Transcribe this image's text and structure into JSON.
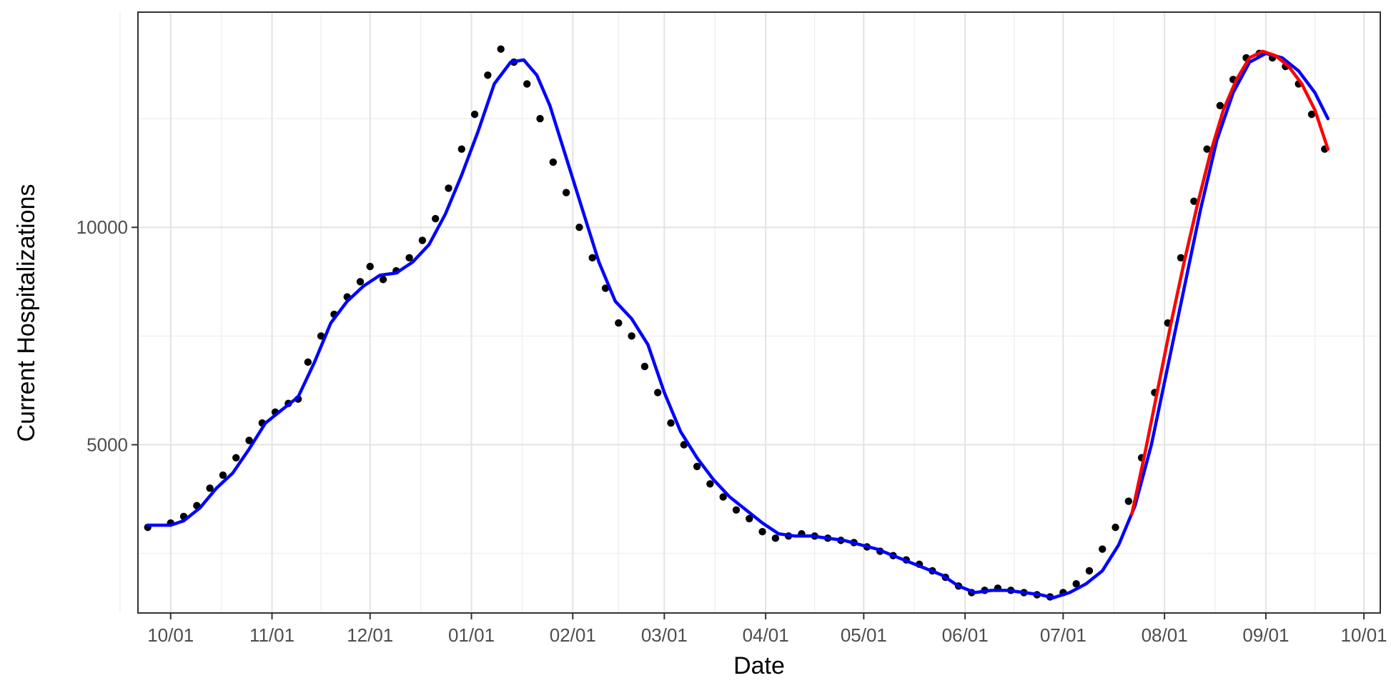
{
  "chart_data": {
    "type": "scatter",
    "title": "",
    "xlabel": "Date",
    "ylabel": "Current Hospitalizations",
    "x_type": "date",
    "xlim": [
      "2020-09-21",
      "2021-10-06"
    ],
    "ylim": [
      1130,
      14950
    ],
    "grid": true,
    "legend": "none",
    "x_ticks": [
      {
        "date": "2020-10-01",
        "label": "10/01"
      },
      {
        "date": "2020-11-01",
        "label": "11/01"
      },
      {
        "date": "2020-12-01",
        "label": "12/01"
      },
      {
        "date": "2021-01-01",
        "label": "01/01"
      },
      {
        "date": "2021-02-01",
        "label": "02/01"
      },
      {
        "date": "2021-03-01",
        "label": "03/01"
      },
      {
        "date": "2021-04-01",
        "label": "04/01"
      },
      {
        "date": "2021-05-01",
        "label": "05/01"
      },
      {
        "date": "2021-06-01",
        "label": "06/01"
      },
      {
        "date": "2021-07-01",
        "label": "07/01"
      },
      {
        "date": "2021-08-01",
        "label": "08/01"
      },
      {
        "date": "2021-09-01",
        "label": "09/01"
      },
      {
        "date": "2021-10-01",
        "label": "10/01"
      }
    ],
    "y_ticks": [
      {
        "value": 5000,
        "label": "5000"
      },
      {
        "value": 10000,
        "label": "10000"
      }
    ],
    "series": [
      {
        "kind": "points",
        "color": "#000000",
        "points": [
          [
            "2020-09-24",
            3100
          ],
          [
            "2020-10-01",
            3200
          ],
          [
            "2020-10-05",
            3350
          ],
          [
            "2020-10-09",
            3600
          ],
          [
            "2020-10-13",
            4000
          ],
          [
            "2020-10-17",
            4300
          ],
          [
            "2020-10-21",
            4700
          ],
          [
            "2020-10-25",
            5100
          ],
          [
            "2020-10-29",
            5500
          ],
          [
            "2020-11-02",
            5750
          ],
          [
            "2020-11-06",
            5950
          ],
          [
            "2020-11-09",
            6050
          ],
          [
            "2020-11-12",
            6900
          ],
          [
            "2020-11-16",
            7500
          ],
          [
            "2020-11-20",
            8000
          ],
          [
            "2020-11-24",
            8400
          ],
          [
            "2020-11-28",
            8750
          ],
          [
            "2020-12-01",
            9100
          ],
          [
            "2020-12-05",
            8800
          ],
          [
            "2020-12-09",
            9000
          ],
          [
            "2020-12-13",
            9300
          ],
          [
            "2020-12-17",
            9700
          ],
          [
            "2020-12-21",
            10200
          ],
          [
            "2020-12-25",
            10900
          ],
          [
            "2020-12-29",
            11800
          ],
          [
            "2021-01-02",
            12600
          ],
          [
            "2021-01-06",
            13500
          ],
          [
            "2021-01-10",
            14100
          ],
          [
            "2021-01-14",
            13800
          ],
          [
            "2021-01-18",
            13300
          ],
          [
            "2021-01-22",
            12500
          ],
          [
            "2021-01-26",
            11500
          ],
          [
            "2021-01-30",
            10800
          ],
          [
            "2021-02-03",
            10000
          ],
          [
            "2021-02-07",
            9300
          ],
          [
            "2021-02-11",
            8600
          ],
          [
            "2021-02-15",
            7800
          ],
          [
            "2021-02-19",
            7500
          ],
          [
            "2021-02-23",
            6800
          ],
          [
            "2021-02-27",
            6200
          ],
          [
            "2021-03-03",
            5500
          ],
          [
            "2021-03-07",
            5000
          ],
          [
            "2021-03-11",
            4500
          ],
          [
            "2021-03-15",
            4100
          ],
          [
            "2021-03-19",
            3800
          ],
          [
            "2021-03-23",
            3500
          ],
          [
            "2021-03-27",
            3300
          ],
          [
            "2021-03-31",
            3000
          ],
          [
            "2021-04-04",
            2850
          ],
          [
            "2021-04-08",
            2900
          ],
          [
            "2021-04-12",
            2950
          ],
          [
            "2021-04-16",
            2900
          ],
          [
            "2021-04-20",
            2850
          ],
          [
            "2021-04-24",
            2800
          ],
          [
            "2021-04-28",
            2750
          ],
          [
            "2021-05-02",
            2650
          ],
          [
            "2021-05-06",
            2550
          ],
          [
            "2021-05-10",
            2450
          ],
          [
            "2021-05-14",
            2350
          ],
          [
            "2021-05-18",
            2250
          ],
          [
            "2021-05-22",
            2100
          ],
          [
            "2021-05-26",
            1950
          ],
          [
            "2021-05-30",
            1750
          ],
          [
            "2021-06-03",
            1600
          ],
          [
            "2021-06-07",
            1650
          ],
          [
            "2021-06-11",
            1700
          ],
          [
            "2021-06-15",
            1650
          ],
          [
            "2021-06-19",
            1600
          ],
          [
            "2021-06-23",
            1550
          ],
          [
            "2021-06-27",
            1500
          ],
          [
            "2021-07-01",
            1600
          ],
          [
            "2021-07-05",
            1800
          ],
          [
            "2021-07-09",
            2100
          ],
          [
            "2021-07-13",
            2600
          ],
          [
            "2021-07-17",
            3100
          ],
          [
            "2021-07-21",
            3700
          ],
          [
            "2021-07-25",
            4700
          ],
          [
            "2021-07-29",
            6200
          ],
          [
            "2021-08-02",
            7800
          ],
          [
            "2021-08-06",
            9300
          ],
          [
            "2021-08-10",
            10600
          ],
          [
            "2021-08-14",
            11800
          ],
          [
            "2021-08-18",
            12800
          ],
          [
            "2021-08-22",
            13400
          ],
          [
            "2021-08-26",
            13900
          ],
          [
            "2021-08-30",
            14000
          ],
          [
            "2021-09-03",
            13900
          ],
          [
            "2021-09-07",
            13700
          ],
          [
            "2021-09-11",
            13300
          ],
          [
            "2021-09-15",
            12600
          ],
          [
            "2021-09-19",
            11800
          ]
        ]
      },
      {
        "kind": "line",
        "color": "#0000ff",
        "points": [
          [
            "2020-09-24",
            3150
          ],
          [
            "2020-10-01",
            3150
          ],
          [
            "2020-10-05",
            3250
          ],
          [
            "2020-10-10",
            3550
          ],
          [
            "2020-10-15",
            4000
          ],
          [
            "2020-10-20",
            4350
          ],
          [
            "2020-10-25",
            4900
          ],
          [
            "2020-10-30",
            5500
          ],
          [
            "2020-11-04",
            5800
          ],
          [
            "2020-11-09",
            6100
          ],
          [
            "2020-11-14",
            6900
          ],
          [
            "2020-11-19",
            7800
          ],
          [
            "2020-11-24",
            8300
          ],
          [
            "2020-11-29",
            8650
          ],
          [
            "2020-12-04",
            8900
          ],
          [
            "2020-12-09",
            8950
          ],
          [
            "2020-12-14",
            9200
          ],
          [
            "2020-12-19",
            9600
          ],
          [
            "2020-12-24",
            10300
          ],
          [
            "2020-12-29",
            11200
          ],
          [
            "2021-01-03",
            12200
          ],
          [
            "2021-01-08",
            13300
          ],
          [
            "2021-01-13",
            13800
          ],
          [
            "2021-01-17",
            13850
          ],
          [
            "2021-01-21",
            13500
          ],
          [
            "2021-01-25",
            12800
          ],
          [
            "2021-01-30",
            11600
          ],
          [
            "2021-02-04",
            10400
          ],
          [
            "2021-02-09",
            9200
          ],
          [
            "2021-02-14",
            8300
          ],
          [
            "2021-02-19",
            7900
          ],
          [
            "2021-02-24",
            7300
          ],
          [
            "2021-03-01",
            6200
          ],
          [
            "2021-03-06",
            5300
          ],
          [
            "2021-03-11",
            4700
          ],
          [
            "2021-03-16",
            4200
          ],
          [
            "2021-03-21",
            3800
          ],
          [
            "2021-03-26",
            3500
          ],
          [
            "2021-03-31",
            3200
          ],
          [
            "2021-04-05",
            2950
          ],
          [
            "2021-04-10",
            2900
          ],
          [
            "2021-04-15",
            2900
          ],
          [
            "2021-04-20",
            2850
          ],
          [
            "2021-04-25",
            2800
          ],
          [
            "2021-04-30",
            2700
          ],
          [
            "2021-05-05",
            2600
          ],
          [
            "2021-05-10",
            2450
          ],
          [
            "2021-05-15",
            2300
          ],
          [
            "2021-05-20",
            2150
          ],
          [
            "2021-05-25",
            2000
          ],
          [
            "2021-05-30",
            1750
          ],
          [
            "2021-06-04",
            1600
          ],
          [
            "2021-06-09",
            1650
          ],
          [
            "2021-06-14",
            1650
          ],
          [
            "2021-06-19",
            1600
          ],
          [
            "2021-06-24",
            1550
          ],
          [
            "2021-06-28",
            1480
          ],
          [
            "2021-07-03",
            1600
          ],
          [
            "2021-07-08",
            1800
          ],
          [
            "2021-07-13",
            2100
          ],
          [
            "2021-07-18",
            2700
          ],
          [
            "2021-07-23",
            3600
          ],
          [
            "2021-07-28",
            5000
          ],
          [
            "2021-08-02",
            6800
          ],
          [
            "2021-08-07",
            8600
          ],
          [
            "2021-08-12",
            10400
          ],
          [
            "2021-08-17",
            12000
          ],
          [
            "2021-08-22",
            13100
          ],
          [
            "2021-08-27",
            13800
          ],
          [
            "2021-09-01",
            14000
          ],
          [
            "2021-09-06",
            13900
          ],
          [
            "2021-09-11",
            13600
          ],
          [
            "2021-09-16",
            13100
          ],
          [
            "2021-09-20",
            12500
          ]
        ]
      },
      {
        "kind": "line",
        "color": "#ff0000",
        "points": [
          [
            "2021-07-22",
            3400
          ],
          [
            "2021-07-26",
            4800
          ],
          [
            "2021-07-30",
            6300
          ],
          [
            "2021-08-03",
            7800
          ],
          [
            "2021-08-07",
            9200
          ],
          [
            "2021-08-11",
            10500
          ],
          [
            "2021-08-15",
            11700
          ],
          [
            "2021-08-19",
            12700
          ],
          [
            "2021-08-23",
            13400
          ],
          [
            "2021-08-27",
            13900
          ],
          [
            "2021-08-31",
            14050
          ],
          [
            "2021-09-04",
            13950
          ],
          [
            "2021-09-08",
            13700
          ],
          [
            "2021-09-12",
            13300
          ],
          [
            "2021-09-16",
            12700
          ],
          [
            "2021-09-20",
            11800
          ]
        ]
      }
    ]
  }
}
